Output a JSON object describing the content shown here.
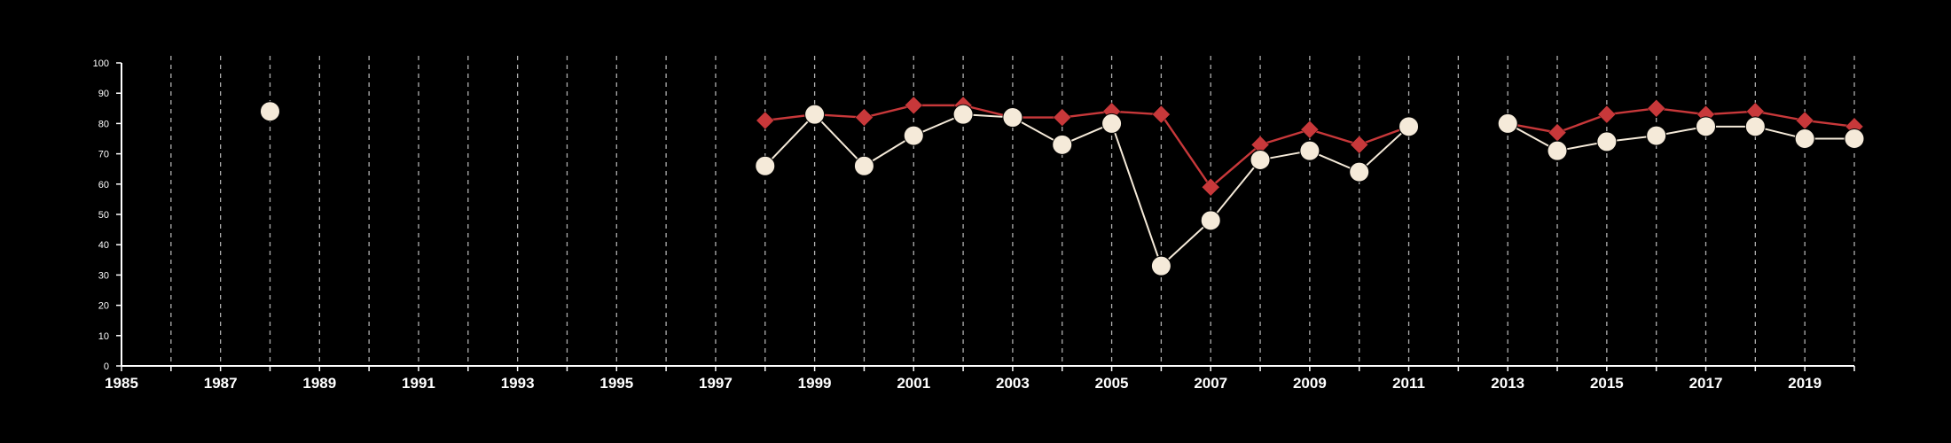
{
  "colors": {
    "background": "#000000",
    "axis": "#ffffff",
    "grid": "#cfcfcf",
    "series_white": "#f5ead9",
    "series_red": "#c8383a"
  },
  "chart_data": {
    "type": "line",
    "xlim": [
      1985,
      2020
    ],
    "ylim": [
      0,
      100
    ],
    "x_tick_labels": [
      "1985",
      "1987",
      "1989",
      "1991",
      "1993",
      "1995",
      "1997",
      "1999",
      "2001",
      "2003",
      "2005",
      "2007",
      "2009",
      "2011",
      "2013",
      "2015",
      "2017",
      "2019"
    ],
    "y_tick_labels": [
      "0",
      "10",
      "20",
      "30",
      "40",
      "50",
      "60",
      "70",
      "80",
      "90",
      "100"
    ],
    "grid": "vertical dashed lines at each year",
    "legend": "none",
    "series": [
      {
        "marker": "diamond",
        "color": "#c8383a",
        "x": [
          1988,
          1998,
          1999,
          2000,
          2001,
          2002,
          2003,
          2004,
          2005,
          2006,
          2007,
          2008,
          2009,
          2010,
          2011,
          2013,
          2014,
          2015,
          2016,
          2017,
          2018,
          2019,
          2020
        ],
        "values": [
          84,
          81,
          83,
          82,
          86,
          86,
          82,
          82,
          84,
          83,
          59,
          73,
          78,
          73,
          79,
          80,
          77,
          83,
          85,
          83,
          84,
          81,
          79
        ]
      },
      {
        "marker": "circle",
        "color": "#f5ead9",
        "x": [
          1988,
          1998,
          1999,
          2000,
          2001,
          2002,
          2003,
          2004,
          2005,
          2006,
          2007,
          2008,
          2009,
          2010,
          2011,
          2013,
          2014,
          2015,
          2016,
          2017,
          2018,
          2019,
          2020
        ],
        "values": [
          84,
          66,
          83,
          66,
          76,
          83,
          82,
          73,
          80,
          33,
          48,
          68,
          71,
          64,
          79,
          80,
          71,
          74,
          76,
          79,
          79,
          75,
          75
        ]
      }
    ]
  }
}
